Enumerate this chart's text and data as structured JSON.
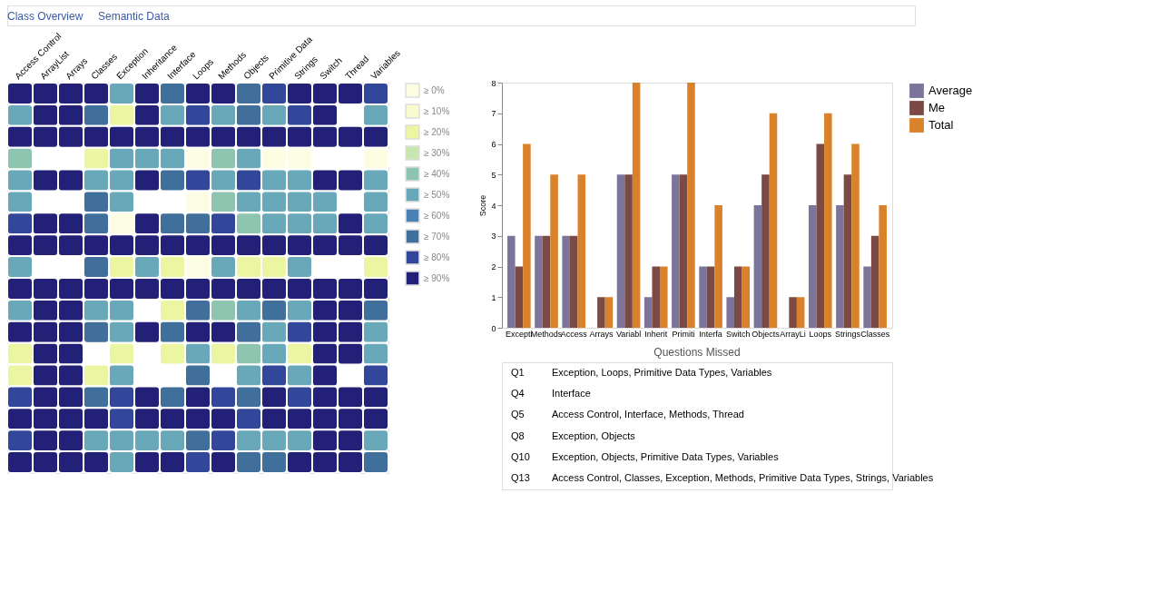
{
  "chart_data": [
    {
      "type": "other",
      "annotations": [
        "Class Overview",
        "Semantic Data"
      ]
    },
    {
      "type": "heatmap",
      "categories": [
        "Access Control",
        "ArrayList",
        "Arrays",
        "Classes",
        "Exception",
        "Inheritance",
        "Interface",
        "Loops",
        "Methods",
        "Objects",
        "Primitive Data",
        "Strings",
        "Switch",
        "Thread",
        "Variables"
      ],
      "y_categories": [
        null,
        null,
        null,
        null,
        null,
        null,
        null,
        null,
        null,
        null,
        null,
        null,
        null,
        null,
        null,
        null,
        null,
        null
      ],
      "cells": [
        [
          90,
          90,
          90,
          90,
          50,
          90,
          70,
          90,
          90,
          70,
          80,
          90,
          90,
          90,
          80
        ],
        [
          50,
          90,
          90,
          70,
          20,
          90,
          50,
          80,
          50,
          70,
          50,
          80,
          90,
          null,
          50
        ],
        [
          90,
          90,
          90,
          90,
          90,
          90,
          90,
          90,
          90,
          90,
          90,
          90,
          90,
          90,
          90
        ],
        [
          40,
          null,
          null,
          20,
          50,
          50,
          50,
          0,
          40,
          50,
          0,
          0,
          null,
          null,
          0
        ],
        [
          50,
          90,
          90,
          50,
          50,
          90,
          70,
          80,
          50,
          80,
          50,
          50,
          90,
          90,
          50
        ],
        [
          50,
          null,
          null,
          70,
          50,
          null,
          null,
          0,
          40,
          50,
          50,
          50,
          50,
          null,
          50
        ],
        [
          80,
          90,
          90,
          70,
          0,
          90,
          70,
          70,
          80,
          40,
          50,
          50,
          50,
          90,
          50
        ],
        [
          90,
          90,
          90,
          90,
          90,
          90,
          90,
          90,
          90,
          90,
          90,
          90,
          90,
          90,
          90
        ],
        [
          50,
          null,
          null,
          70,
          20,
          50,
          20,
          0,
          50,
          20,
          20,
          50,
          null,
          null,
          20
        ],
        [
          90,
          90,
          90,
          90,
          90,
          90,
          90,
          90,
          90,
          90,
          90,
          90,
          90,
          90,
          90
        ],
        [
          50,
          90,
          90,
          50,
          50,
          null,
          20,
          70,
          40,
          50,
          70,
          50,
          90,
          90,
          70
        ],
        [
          90,
          90,
          90,
          70,
          50,
          90,
          70,
          90,
          90,
          70,
          50,
          80,
          90,
          90,
          50
        ],
        [
          20,
          90,
          90,
          null,
          20,
          null,
          20,
          50,
          20,
          40,
          50,
          20,
          90,
          90,
          50
        ],
        [
          20,
          90,
          90,
          20,
          50,
          null,
          null,
          70,
          null,
          50,
          80,
          50,
          90,
          null,
          80
        ],
        [
          80,
          90,
          90,
          70,
          80,
          90,
          70,
          90,
          80,
          70,
          90,
          80,
          90,
          90,
          90
        ],
        [
          90,
          90,
          90,
          90,
          80,
          90,
          90,
          90,
          90,
          80,
          90,
          90,
          90,
          90,
          90
        ],
        [
          80,
          90,
          90,
          50,
          50,
          50,
          50,
          70,
          80,
          50,
          50,
          50,
          90,
          90,
          50
        ],
        [
          90,
          90,
          90,
          90,
          50,
          90,
          90,
          80,
          90,
          70,
          70,
          90,
          90,
          90,
          70
        ]
      ],
      "cticks": [
        {
          "value": 0,
          "label": "≥ 0%"
        },
        {
          "value": 10,
          "label": "≥ 10%"
        },
        {
          "value": 20,
          "label": "≥ 20%"
        },
        {
          "value": 30,
          "label": "≥ 30%"
        },
        {
          "value": 40,
          "label": "≥ 40%"
        },
        {
          "value": 50,
          "label": "≥ 50%"
        },
        {
          "value": 60,
          "label": "≥ 60%"
        },
        {
          "value": 70,
          "label": "≥ 70%"
        },
        {
          "value": 80,
          "label": "≥ 80%"
        },
        {
          "value": 90,
          "label": "≥ 90%"
        }
      ],
      "colors": [
        "#fdfde4",
        "#f8fbcf",
        "#ebf5a2",
        "#c8e6ad",
        "#8ec5b0",
        "#68a8b8",
        "#4a82b5",
        "#416f9c",
        "#33479a",
        "#232077"
      ]
    },
    {
      "type": "bar",
      "ylabel": "Score",
      "categories": [
        "Excepti",
        "Methods",
        "Access",
        "Arrays",
        "Variabl",
        "Inherit",
        "Primiti",
        "Interfa",
        "Switch",
        "Objects",
        "ArrayLi",
        "Loops",
        "Strings",
        "Classes"
      ],
      "series": [
        {
          "name": "Average",
          "color": "#7c7599",
          "values": [
            3,
            3,
            3,
            0,
            5,
            1,
            5,
            2,
            1,
            4,
            0,
            4,
            4,
            2
          ]
        },
        {
          "name": "Me",
          "color": "#7b4a45",
          "values": [
            2,
            3,
            3,
            1,
            5,
            2,
            5,
            2,
            2,
            5,
            1,
            6,
            5,
            3
          ]
        },
        {
          "name": "Total",
          "color": "#d9822b",
          "values": [
            6,
            5,
            5,
            1,
            8,
            2,
            8,
            4,
            2,
            7,
            1,
            7,
            6,
            4
          ]
        }
      ],
      "ylim": [
        0,
        8
      ],
      "yticks": [
        0,
        1,
        2,
        3,
        4,
        5,
        6,
        7,
        8
      ],
      "grid": false,
      "legend": "top right"
    },
    {
      "type": "other",
      "title": "Questions Missed",
      "categories": [
        "Q1",
        "Q4",
        "Q5",
        "Q8",
        "Q10",
        "Q13"
      ],
      "annotations": [
        "Exception, Loops, Primitive Data Types, Variables",
        "Interface",
        "Access Control, Interface, Methods, Thread",
        "Exception, Objects",
        "Exception, Objects, Primitive Data Types, Variables",
        "Access Control, Classes, Exception, Methods, Primitive Data Types, Strings, Variables"
      ]
    }
  ]
}
